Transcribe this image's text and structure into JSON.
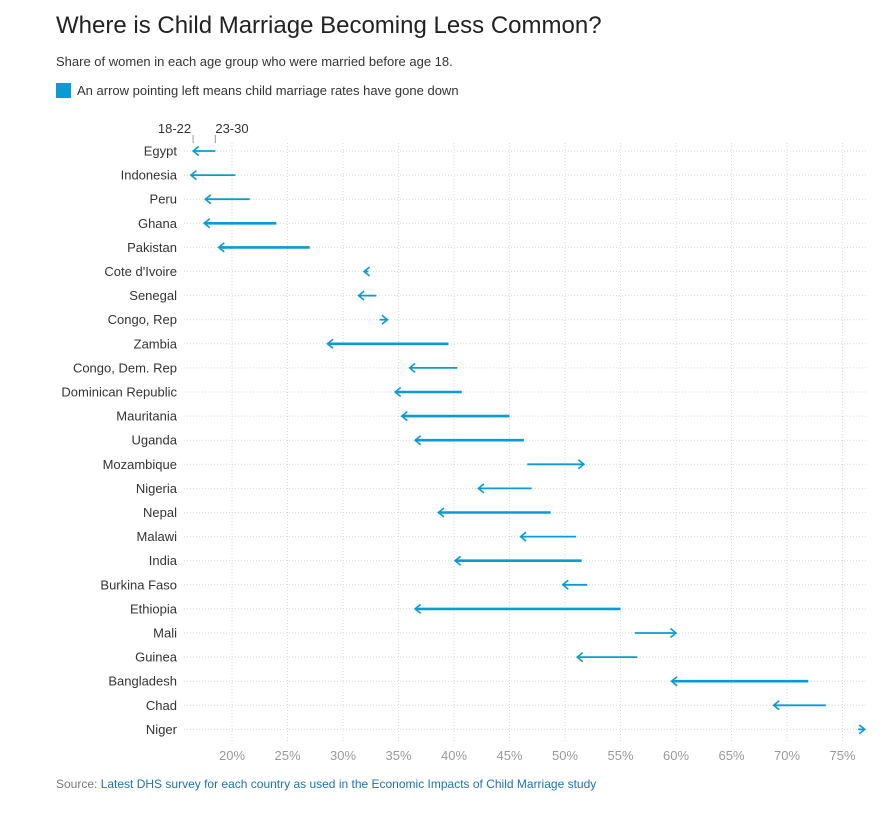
{
  "header": {
    "title": "Where is Child Marriage Becoming Less Common?",
    "subtitle": "Share of women in each age group who were married before age 18.",
    "legend_text": "An arrow pointing left means child marriage rates have gone down"
  },
  "footer": {
    "source_prefix": "Source: ",
    "source_link": "Latest DHS survey for each country as used in the Economic Impacts of Child Marriage study"
  },
  "colors": {
    "arrow": "#0a9bd4",
    "grid": "#d9d9d9"
  },
  "chart_data": {
    "type": "arrow-dot",
    "title": "Where is Child Marriage Becoming Less Common?",
    "xlim": [
      15,
      77
    ],
    "ticks": [
      20,
      25,
      30,
      35,
      40,
      45,
      50,
      55,
      60,
      65,
      70,
      75
    ],
    "tick_labels": [
      "20%",
      "25%",
      "30%",
      "35%",
      "40%",
      "45%",
      "50%",
      "55%",
      "60%",
      "65%",
      "70%",
      "75%"
    ],
    "age_groups": {
      "older": "23-30",
      "younger": "18-22"
    },
    "series": [
      {
        "name": "Egypt",
        "from": 18.5,
        "to": 16.5
      },
      {
        "name": "Indonesia",
        "from": 20.3,
        "to": 16.3
      },
      {
        "name": "Peru",
        "from": 21.6,
        "to": 17.6
      },
      {
        "name": "Ghana",
        "from": 24.0,
        "to": 17.5
      },
      {
        "name": "Pakistan",
        "from": 27.0,
        "to": 18.8
      },
      {
        "name": "Cote d'Ivoire",
        "from": 32.3,
        "to": 31.9
      },
      {
        "name": "Senegal",
        "from": 33.0,
        "to": 31.4
      },
      {
        "name": "Congo, Rep",
        "from": 33.3,
        "to": 34.0
      },
      {
        "name": "Zambia",
        "from": 39.5,
        "to": 28.6
      },
      {
        "name": "Congo, Dem. Rep",
        "from": 40.3,
        "to": 36.0
      },
      {
        "name": "Dominican Republic",
        "from": 40.7,
        "to": 34.7
      },
      {
        "name": "Mauritania",
        "from": 45.0,
        "to": 35.3
      },
      {
        "name": "Uganda",
        "from": 46.3,
        "to": 36.5
      },
      {
        "name": "Mozambique",
        "from": 46.6,
        "to": 51.7
      },
      {
        "name": "Nigeria",
        "from": 47.0,
        "to": 42.2
      },
      {
        "name": "Nepal",
        "from": 48.7,
        "to": 38.6
      },
      {
        "name": "Malawi",
        "from": 51.0,
        "to": 46.0
      },
      {
        "name": "India",
        "from": 51.5,
        "to": 40.1
      },
      {
        "name": "Burkina Faso",
        "from": 52.0,
        "to": 49.8
      },
      {
        "name": "Ethiopia",
        "from": 55.0,
        "to": 36.5
      },
      {
        "name": "Mali",
        "from": 56.3,
        "to": 60.0
      },
      {
        "name": "Guinea",
        "from": 56.5,
        "to": 51.1
      },
      {
        "name": "Bangladesh",
        "from": 71.9,
        "to": 59.6
      },
      {
        "name": "Chad",
        "from": 73.5,
        "to": 68.8
      },
      {
        "name": "Niger",
        "from": 76.4,
        "to": 77.0
      }
    ]
  }
}
